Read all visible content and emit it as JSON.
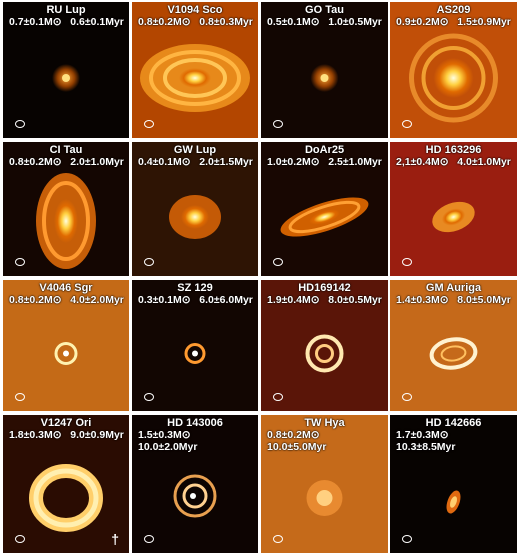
{
  "panels": [
    {
      "name": "RU Lup",
      "line1": "0.7±0.1M⊙   0.6±0.1Myr",
      "line2": "",
      "bg": "#070301",
      "style": "blob-small"
    },
    {
      "name": "V1094 Sco",
      "line1": "0.8±0.2M⊙   0.8±0.3Myr",
      "line2": "",
      "bg": "#b34600",
      "style": "wide-disk"
    },
    {
      "name": "GO Tau",
      "line1": "0.5±0.1M⊙   1.0±0.5Myr",
      "line2": "",
      "bg": "#120602",
      "style": "blob-small"
    },
    {
      "name": "AS209",
      "line1": "0.9±0.2M⊙   1.5±0.9Myr",
      "line2": "",
      "bg": "#c14f08",
      "style": "rings"
    },
    {
      "name": "CI Tau",
      "line1": "0.8±0.2M⊙   2.0±1.0Myr",
      "line2": "",
      "bg": "#140602",
      "style": "tall-disk"
    },
    {
      "name": "GW Lup",
      "line1": "0.4±0.1M⊙   2.0±1.5Myr",
      "line2": "",
      "bg": "#2e1404",
      "style": "oval"
    },
    {
      "name": "DoAr25",
      "line1": "1.0±0.2M⊙   2.5±1.0Myr",
      "line2": "",
      "bg": "#180702",
      "style": "edge-disk"
    },
    {
      "name": "HD 163296",
      "line1": "2,1±0.4M⊙   4.0±1.0Myr",
      "line2": "",
      "bg": "#9a1e10",
      "style": "oval-bright"
    },
    {
      "name": "V4046 Sgr",
      "line1": "0.8±0.2M⊙   4.0±2.0Myr",
      "line2": "",
      "bg": "#c46a17",
      "style": "small-ring"
    },
    {
      "name": "SZ 129",
      "line1": "0.3±0.1M⊙   6.0±6.0Myr",
      "line2": "",
      "bg": "#120602",
      "style": "small-ring-dark"
    },
    {
      "name": "HD169142",
      "line1": "1.9±0.4M⊙   8.0±0.5Myr",
      "line2": "",
      "bg": "#5a1508",
      "style": "ring-big"
    },
    {
      "name": "GM Auriga",
      "line1": "1.4±0.3M⊙   8.0±5.0Myr",
      "line2": "",
      "bg": "#c5691a",
      "style": "ring-oval"
    },
    {
      "name": "V1247 Ori",
      "line1": "1.8±0.3M⊙   9.0±0.9Myr",
      "line2": "",
      "bg": "#2a0c02",
      "style": "donut",
      "dagger": "†"
    },
    {
      "name": "HD 143006",
      "line1": "1.5±0.3M⊙",
      "line2": "10.0±2.0Myr",
      "bg": "#0d0402",
      "style": "ring-dark"
    },
    {
      "name": "TW Hya",
      "line1": "0.8±0.2M⊙",
      "line2": "10.0±5.0Myr",
      "bg": "#c56a1a",
      "style": "blob-mid"
    },
    {
      "name": "HD 142666",
      "line1": "1.7±0.3M⊙",
      "line2": "10.3±8.5Myr",
      "bg": "#070301",
      "style": "edge-small"
    }
  ]
}
